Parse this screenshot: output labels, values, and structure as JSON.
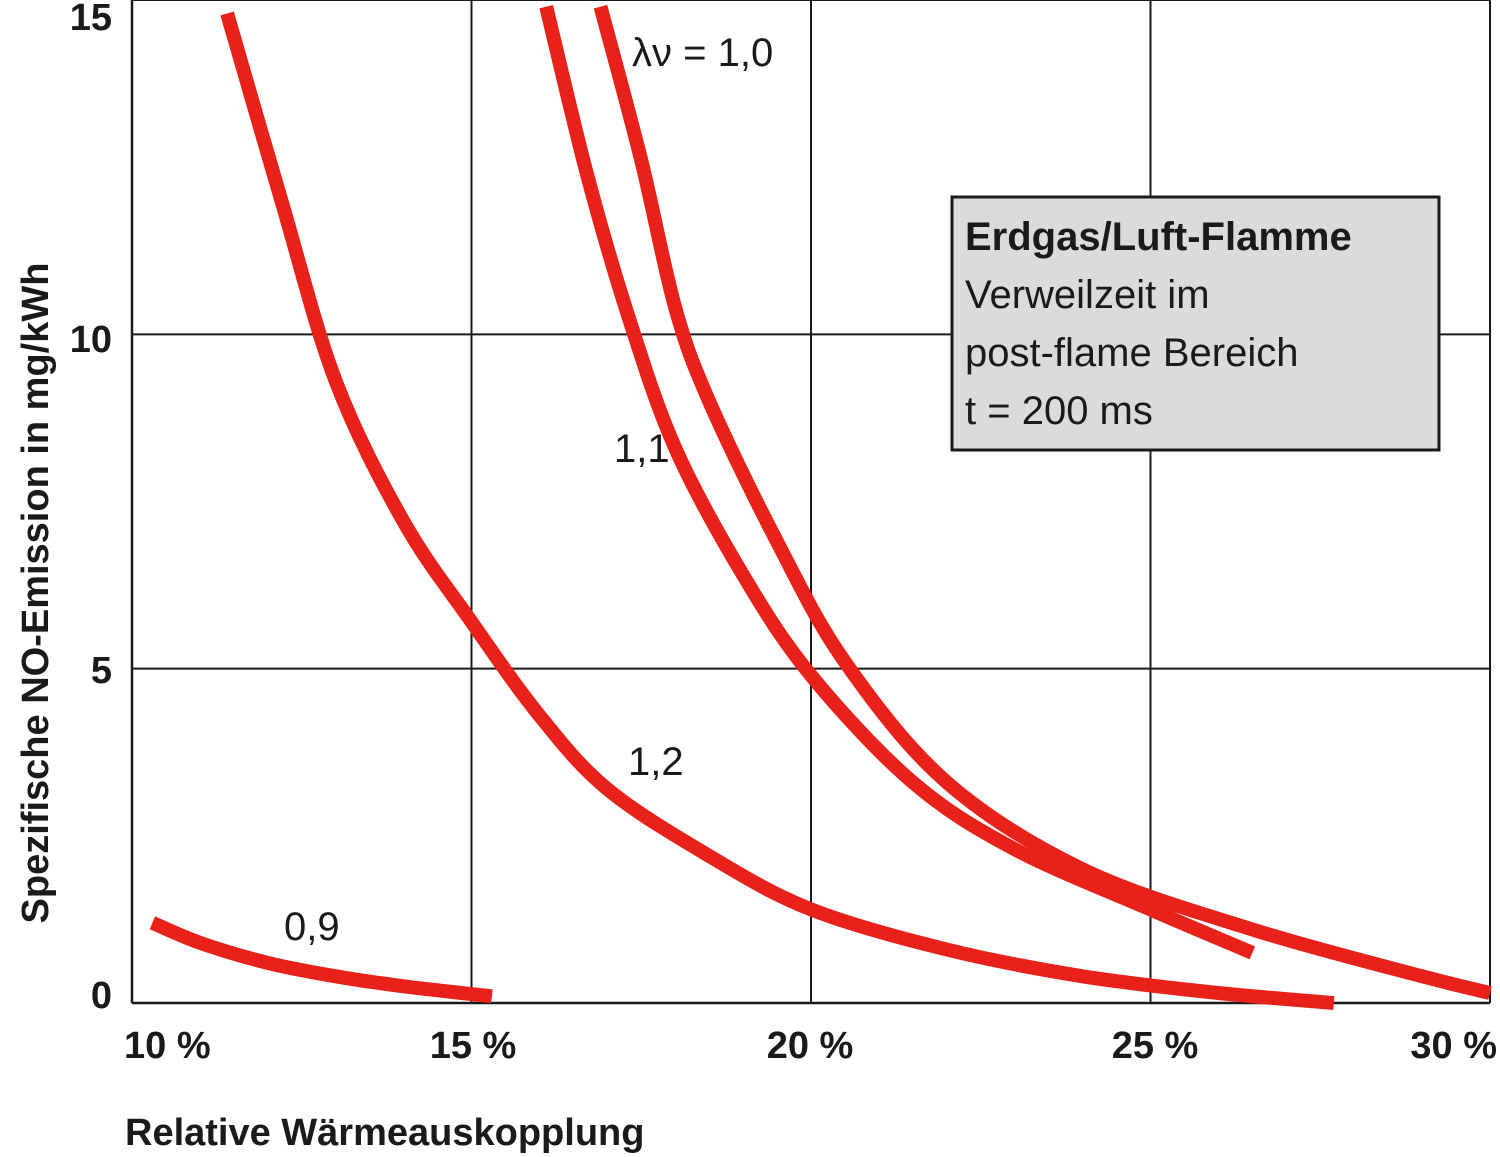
{
  "chart_data": {
    "type": "line",
    "xlabel": "Relative Wärmeauskopplung",
    "ylabel": "Spezifische NO-Emission in mg/kWh",
    "xlim": [
      10,
      30
    ],
    "ylim": [
      0,
      15
    ],
    "x_ticks": [
      10,
      15,
      20,
      25,
      30
    ],
    "x_tick_labels": [
      "10 %",
      "15 %",
      "20 %",
      "25 %",
      "30 %"
    ],
    "y_ticks": [
      0,
      5,
      10,
      15
    ],
    "y_tick_labels": [
      "0",
      "5",
      "10",
      "15"
    ],
    "grid": true,
    "series_color": "#e8221b",
    "series": [
      {
        "name": "λν = 1,0",
        "points": [
          [
            16.9,
            14.9
          ],
          [
            17.5,
            12.6
          ],
          [
            18.0,
            10.4
          ],
          [
            18.5,
            9.0
          ],
          [
            19.5,
            6.9
          ],
          [
            20.5,
            5.1
          ],
          [
            22.0,
            3.3
          ],
          [
            24.0,
            2.0
          ],
          [
            26.5,
            1.1
          ],
          [
            29.0,
            0.4
          ],
          [
            30.0,
            0.15
          ]
        ]
      },
      {
        "name": "1,1",
        "points": [
          [
            16.1,
            14.9
          ],
          [
            16.7,
            12.4
          ],
          [
            17.3,
            10.3
          ],
          [
            18.0,
            8.3
          ],
          [
            19.0,
            6.4
          ],
          [
            20.0,
            4.9
          ],
          [
            21.5,
            3.3
          ],
          [
            23.0,
            2.3
          ],
          [
            25.0,
            1.4
          ],
          [
            26.5,
            0.75
          ]
        ]
      },
      {
        "name": "1,2",
        "points": [
          [
            11.4,
            14.8
          ],
          [
            12.2,
            12.0
          ],
          [
            13.0,
            9.3
          ],
          [
            14.0,
            7.2
          ],
          [
            15.0,
            5.7
          ],
          [
            16.0,
            4.3
          ],
          [
            17.0,
            3.2
          ],
          [
            18.5,
            2.2
          ],
          [
            20.0,
            1.4
          ],
          [
            22.0,
            0.8
          ],
          [
            24.0,
            0.4
          ],
          [
            26.0,
            0.15
          ],
          [
            27.7,
            0.0
          ]
        ]
      },
      {
        "name": "0,9",
        "points": [
          [
            10.3,
            1.2
          ],
          [
            11.0,
            0.9
          ],
          [
            12.0,
            0.6
          ],
          [
            13.0,
            0.4
          ],
          [
            14.0,
            0.25
          ],
          [
            15.3,
            0.1
          ]
        ]
      }
    ],
    "series_labels": [
      "λν = 1,0",
      "1,1",
      "1,2",
      "0,9"
    ],
    "annotation_box": {
      "title": "Erdgas/Luft-Flamme",
      "lines": [
        "Verweilzeit im",
        "post-flame Bereich",
        "t = 200 ms"
      ],
      "background": "#d9dcd9"
    }
  }
}
